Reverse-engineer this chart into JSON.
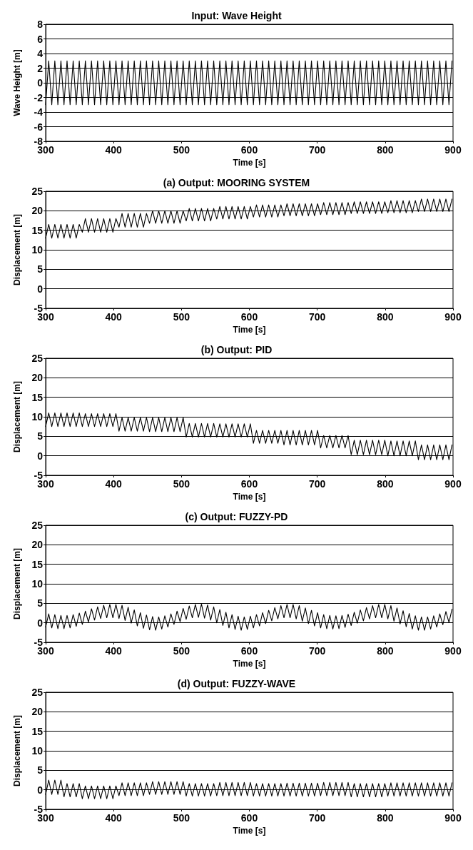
{
  "chart_data": [
    {
      "type": "line",
      "title": "Input: Wave Height",
      "xlabel": "Time [s]",
      "ylabel": "Wave Height [m]",
      "xlim": [
        300,
        900
      ],
      "xticks": [
        300,
        400,
        500,
        600,
        700,
        800,
        900
      ],
      "ylim": [
        -8,
        8
      ],
      "yticks": [
        -8,
        -6,
        -4,
        -2,
        0,
        2,
        4,
        6,
        8
      ],
      "grid": "y",
      "marker": "none",
      "line_style": "solid",
      "x": [
        300,
        304.5,
        309,
        313.5,
        318,
        322.5,
        327,
        331.5,
        336,
        340.5,
        345,
        349.5,
        354,
        358.5,
        363,
        367.5,
        372,
        376.5,
        381,
        385.5,
        390,
        394.5,
        399,
        403.5,
        408,
        412.5,
        417,
        421.5,
        426,
        430.5,
        435,
        439.5,
        444,
        448.5,
        453,
        457.5,
        462,
        466.5,
        471,
        475.5,
        480,
        484.5,
        489,
        493.5,
        498,
        502.5,
        507,
        511.5,
        516,
        520.5,
        525,
        529.5,
        534,
        538.5,
        543,
        547.5,
        552,
        556.5,
        561,
        565.5,
        570,
        574.5,
        579,
        583.5,
        588,
        592.5,
        597,
        601.5,
        606,
        610.5,
        615,
        619.5,
        624,
        628.5,
        633,
        637.5,
        642,
        646.5,
        651,
        655.5,
        660,
        664.5,
        669,
        673.5,
        678,
        682.5,
        687,
        691.5,
        696,
        700.5,
        705,
        709.5,
        714,
        718.5,
        723,
        727.5,
        732,
        736.5,
        741,
        745.5,
        750,
        754.5,
        759,
        763.5,
        768,
        772.5,
        777,
        781.5,
        786,
        790.5,
        795,
        799.5,
        804,
        808.5,
        813,
        817.5,
        822,
        826.5,
        831,
        835.5,
        840,
        844.5,
        849,
        853.5,
        858,
        862.5,
        867,
        871.5,
        876,
        880.5,
        885,
        889.5,
        894,
        898.5
      ],
      "series": [
        {
          "color": "#000000",
          "values": [
            -3,
            3,
            -3,
            3,
            -3,
            3,
            -3,
            3,
            -3,
            3,
            -3,
            3,
            -3,
            3,
            -3,
            3,
            -3,
            3,
            -3,
            3,
            -3,
            3,
            -3,
            3,
            -3,
            3,
            -3,
            3,
            -3,
            3,
            -3,
            3,
            -3,
            3,
            -3,
            3,
            -3,
            3,
            -3,
            3,
            -3,
            3,
            -3,
            3,
            -3,
            3,
            -3,
            3,
            -3,
            3,
            -3,
            3,
            -3,
            3,
            -3,
            3,
            -3,
            3,
            -3,
            3,
            -3,
            3,
            -3,
            3,
            -3,
            3,
            -3,
            3,
            -3,
            3,
            -3,
            3,
            -3,
            3,
            -3,
            3,
            -3,
            3,
            -3,
            3,
            -3,
            3,
            -3,
            3,
            -3,
            3,
            -3,
            3,
            -3,
            3,
            -3,
            3,
            -3,
            3,
            -3,
            3,
            -3,
            3,
            -3,
            3,
            -3,
            3,
            -3,
            3,
            -3,
            3,
            -3,
            3,
            -3,
            3,
            -3,
            3,
            -3,
            3,
            -3,
            3,
            -3,
            3,
            -3,
            3,
            -3,
            3,
            -3,
            3,
            -3,
            3,
            -3,
            3,
            -3,
            3,
            -3,
            3,
            -3,
            3
          ]
        }
      ]
    },
    {
      "type": "line",
      "title": "(a) Output: MOORING SYSTEM",
      "xlabel": "Time [s]",
      "ylabel": "Displacement [m]",
      "xlim": [
        300,
        900
      ],
      "xticks": [
        300,
        400,
        500,
        600,
        700,
        800,
        900
      ],
      "ylim": [
        -5,
        25
      ],
      "yticks": [
        -5,
        0,
        5,
        10,
        15,
        20,
        25
      ],
      "grid": "y",
      "marker": "none",
      "line_style": "solid",
      "x": [
        300,
        304.5,
        309,
        313.5,
        318,
        322.5,
        327,
        331.5,
        336,
        340.5,
        345,
        349.5,
        354,
        358.5,
        363,
        367.5,
        372,
        376.5,
        381,
        385.5,
        390,
        394.5,
        399,
        403.5,
        408,
        412.5,
        417,
        421.5,
        426,
        430.5,
        435,
        439.5,
        444,
        448.5,
        453,
        457.5,
        462,
        466.5,
        471,
        475.5,
        480,
        484.5,
        489,
        493.5,
        498,
        502.5,
        507,
        511.5,
        516,
        520.5,
        525,
        529.5,
        534,
        538.5,
        543,
        547.5,
        552,
        556.5,
        561,
        565.5,
        570,
        574.5,
        579,
        583.5,
        588,
        592.5,
        597,
        601.5,
        606,
        610.5,
        615,
        619.5,
        624,
        628.5,
        633,
        637.5,
        642,
        646.5,
        651,
        655.5,
        660,
        664.5,
        669,
        673.5,
        678,
        682.5,
        687,
        691.5,
        696,
        700.5,
        705,
        709.5,
        714,
        718.5,
        723,
        727.5,
        732,
        736.5,
        741,
        745.5,
        750,
        754.5,
        759,
        763.5,
        768,
        772.5,
        777,
        781.5,
        786,
        790.5,
        795,
        799.5,
        804,
        808.5,
        813,
        817.5,
        822,
        826.5,
        831,
        835.5,
        840,
        844.5,
        849,
        853.5,
        858,
        862.5,
        867,
        871.5,
        876,
        880.5,
        885,
        889.5,
        894,
        898.5
      ],
      "series": [
        {
          "color": "#000000",
          "values": [
            13,
            16.5,
            13,
            16.5,
            13,
            16.5,
            13,
            16.5,
            13,
            16.5,
            13,
            16.5,
            14.5,
            18,
            14.5,
            18,
            14.5,
            18,
            14.5,
            18,
            14.5,
            18,
            14.5,
            18,
            15.8,
            19.3,
            15.8,
            19.3,
            15.8,
            19.3,
            15.8,
            19.3,
            15.8,
            19.3,
            16.8,
            20,
            16.8,
            20,
            16.8,
            20,
            16.8,
            20,
            16.8,
            20,
            16.8,
            20,
            17.4,
            20.6,
            17.4,
            20.6,
            17.4,
            20.6,
            17.4,
            20.6,
            17.4,
            20.6,
            17.9,
            21.1,
            17.9,
            21.1,
            17.9,
            21.1,
            17.9,
            21.1,
            17.9,
            21.1,
            17.9,
            21.1,
            18.4,
            21.5,
            18.4,
            21.5,
            18.4,
            21.5,
            18.4,
            21.5,
            18.4,
            21.5,
            18.7,
            21.8,
            18.7,
            21.8,
            18.7,
            21.8,
            18.7,
            21.8,
            18.7,
            21.8,
            18.7,
            21.8,
            19,
            22.1,
            19,
            22.1,
            19,
            22.1,
            19,
            22.1,
            19,
            22.1,
            19.3,
            22.3,
            19.3,
            22.3,
            19.3,
            22.3,
            19.3,
            22.3,
            19.3,
            22.3,
            19.3,
            22.3,
            19.5,
            22.6,
            19.5,
            22.6,
            19.5,
            22.6,
            19.5,
            22.6,
            19.5,
            22.6,
            19.8,
            23,
            19.8,
            23,
            19.8,
            23,
            19.8,
            23,
            19.8,
            23,
            19.8,
            23
          ]
        }
      ]
    },
    {
      "type": "line",
      "title": "(b) Output: PID",
      "xlabel": "Time [s]",
      "ylabel": "Displacement [m]",
      "xlim": [
        300,
        900
      ],
      "xticks": [
        300,
        400,
        500,
        600,
        700,
        800,
        900
      ],
      "ylim": [
        -5,
        25
      ],
      "yticks": [
        -5,
        0,
        5,
        10,
        15,
        20,
        25
      ],
      "grid": "y",
      "marker": "none",
      "line_style": "solid",
      "x": [
        300,
        304.5,
        309,
        313.5,
        318,
        322.5,
        327,
        331.5,
        336,
        340.5,
        345,
        349.5,
        354,
        358.5,
        363,
        367.5,
        372,
        376.5,
        381,
        385.5,
        390,
        394.5,
        399,
        403.5,
        408,
        412.5,
        417,
        421.5,
        426,
        430.5,
        435,
        439.5,
        444,
        448.5,
        453,
        457.5,
        462,
        466.5,
        471,
        475.5,
        480,
        484.5,
        489,
        493.5,
        498,
        502.5,
        507,
        511.5,
        516,
        520.5,
        525,
        529.5,
        534,
        538.5,
        543,
        547.5,
        552,
        556.5,
        561,
        565.5,
        570,
        574.5,
        579,
        583.5,
        588,
        592.5,
        597,
        601.5,
        606,
        610.5,
        615,
        619.5,
        624,
        628.5,
        633,
        637.5,
        642,
        646.5,
        651,
        655.5,
        660,
        664.5,
        669,
        673.5,
        678,
        682.5,
        687,
        691.5,
        696,
        700.5,
        705,
        709.5,
        714,
        718.5,
        723,
        727.5,
        732,
        736.5,
        741,
        745.5,
        750,
        754.5,
        759,
        763.5,
        768,
        772.5,
        777,
        781.5,
        786,
        790.5,
        795,
        799.5,
        804,
        808.5,
        813,
        817.5,
        822,
        826.5,
        831,
        835.5,
        840,
        844.5,
        849,
        853.5,
        858,
        862.5,
        867,
        871.5,
        876,
        880.5,
        885,
        889.5,
        894,
        898.5
      ],
      "series": [
        {
          "color": "#000000",
          "values": [
            7.5,
            11,
            7.5,
            11,
            7.5,
            11,
            7.5,
            11,
            7.5,
            11,
            7.5,
            11,
            7.5,
            10.8,
            7.5,
            10.8,
            7.5,
            10.8,
            7.5,
            10.8,
            7.5,
            10.8,
            7.5,
            10.8,
            6.3,
            9.8,
            6.3,
            9.8,
            6.3,
            9.8,
            6.3,
            9.8,
            6.3,
            9.8,
            6.2,
            9.8,
            6.2,
            9.8,
            6.2,
            9.8,
            6.2,
            9.8,
            6.2,
            9.8,
            6.2,
            9.8,
            4.8,
            8.3,
            4.8,
            8.3,
            4.8,
            8.3,
            4.8,
            8.3,
            4.8,
            8.3,
            4.8,
            8.2,
            4.8,
            8.2,
            4.8,
            8.2,
            4.8,
            8.2,
            4.8,
            8.2,
            4.8,
            8.2,
            3.2,
            6.5,
            3.2,
            6.5,
            3.2,
            6.5,
            3.2,
            6.5,
            3.2,
            6.5,
            2.8,
            6.5,
            2.8,
            6.5,
            2.8,
            6.5,
            2.8,
            6.5,
            2.8,
            6.5,
            2.8,
            6.5,
            2,
            5.2,
            2,
            5.2,
            2,
            5.2,
            2,
            5.2,
            2,
            5.2,
            0.3,
            4,
            0.3,
            4,
            0.3,
            4,
            0.3,
            4,
            0.3,
            4,
            0.3,
            4,
            0,
            3.8,
            0,
            3.8,
            0,
            3.8,
            0,
            3.8,
            0,
            3.8,
            -1,
            2.8,
            -1,
            2.8,
            -1,
            2.8,
            -1,
            2.8,
            -1,
            2.8,
            -1,
            2.8
          ]
        }
      ]
    },
    {
      "type": "line",
      "title": "(c) Output: FUZZY-PD",
      "xlabel": "Time [s]",
      "ylabel": "Displacement [m]",
      "xlim": [
        300,
        900
      ],
      "xticks": [
        300,
        400,
        500,
        600,
        700,
        800,
        900
      ],
      "ylim": [
        -5,
        25
      ],
      "yticks": [
        -5,
        0,
        5,
        10,
        15,
        20,
        25
      ],
      "grid": "y",
      "marker": "none",
      "line_style": "solid",
      "x": [
        300,
        304.5,
        309,
        313.5,
        318,
        322.5,
        327,
        331.5,
        336,
        340.5,
        345,
        349.5,
        354,
        358.5,
        363,
        367.5,
        372,
        376.5,
        381,
        385.5,
        390,
        394.5,
        399,
        403.5,
        408,
        412.5,
        417,
        421.5,
        426,
        430.5,
        435,
        439.5,
        444,
        448.5,
        453,
        457.5,
        462,
        466.5,
        471,
        475.5,
        480,
        484.5,
        489,
        493.5,
        498,
        502.5,
        507,
        511.5,
        516,
        520.5,
        525,
        529.5,
        534,
        538.5,
        543,
        547.5,
        552,
        556.5,
        561,
        565.5,
        570,
        574.5,
        579,
        583.5,
        588,
        592.5,
        597,
        601.5,
        606,
        610.5,
        615,
        619.5,
        624,
        628.5,
        633,
        637.5,
        642,
        646.5,
        651,
        655.5,
        660,
        664.5,
        669,
        673.5,
        678,
        682.5,
        687,
        691.5,
        696,
        700.5,
        705,
        709.5,
        714,
        718.5,
        723,
        727.5,
        732,
        736.5,
        741,
        745.5,
        750,
        754.5,
        759,
        763.5,
        768,
        772.5,
        777,
        781.5,
        786,
        790.5,
        795,
        799.5,
        804,
        808.5,
        813,
        817.5,
        822,
        826.5,
        831,
        835.5,
        840,
        844.5,
        849,
        853.5,
        858,
        862.5,
        867,
        871.5,
        876,
        880.5,
        885,
        889.5,
        894,
        898.5
      ],
      "series": [
        {
          "color": "#000000",
          "values": [
            -1.1,
            2.3,
            -1.3,
            2.1,
            -1.5,
            1.9,
            -1.5,
            1.9,
            -1.3,
            2.1,
            -0.9,
            2.5,
            -0.4,
            3,
            0.2,
            3.6,
            0.7,
            4.1,
            1.1,
            4.5,
            1.3,
            4.7,
            1.3,
            4.7,
            1.1,
            4.5,
            0.6,
            4,
            -0.1,
            3.3,
            -0.8,
            2.6,
            -1.4,
            2,
            -1.8,
            1.6,
            -1.9,
            1.5,
            -1.6,
            1.8,
            -1.1,
            2.3,
            -0.4,
            3,
            0.3,
            3.7,
            0.9,
            4.3,
            1.3,
            4.7,
            1.4,
            4.8,
            1.2,
            4.6,
            0.7,
            4.1,
            0,
            3.4,
            -0.7,
            2.7,
            -1.3,
            2.1,
            -1.7,
            1.7,
            -1.9,
            1.5,
            -1.7,
            1.7,
            -1.3,
            2.1,
            -0.8,
            2.6,
            -0.2,
            3.2,
            0.5,
            3.9,
            1,
            4.4,
            1.3,
            4.7,
            1.3,
            4.7,
            1,
            4.4,
            0.4,
            3.8,
            -0.2,
            3.2,
            -0.8,
            2.6,
            -1.3,
            2.1,
            -1.5,
            1.9,
            -1.6,
            1.8,
            -1.5,
            1.9,
            -1.2,
            2.2,
            -0.7,
            2.7,
            -0.1,
            3.3,
            0.5,
            3.9,
            1,
            4.4,
            1.3,
            4.7,
            1.3,
            4.7,
            1,
            4.4,
            0.4,
            3.8,
            -0.3,
            3.1,
            -1,
            2.4,
            -1.6,
            1.8,
            -1.9,
            1.5,
            -1.9,
            1.5,
            -1.6,
            1.8,
            -1.1,
            2.3,
            -0.5,
            2.9,
            0.1,
            3.5
          ]
        }
      ]
    },
    {
      "type": "line",
      "title": "(d) Output: FUZZY-WAVE",
      "xlabel": "Time [s]",
      "ylabel": "Displacement [m]",
      "xlim": [
        300,
        900
      ],
      "xticks": [
        300,
        400,
        500,
        600,
        700,
        800,
        900
      ],
      "ylim": [
        -5,
        25
      ],
      "yticks": [
        -5,
        0,
        5,
        10,
        15,
        20,
        25
      ],
      "grid": "y",
      "marker": "none",
      "line_style": "solid",
      "x": [
        300,
        304.5,
        309,
        313.5,
        318,
        322.5,
        327,
        331.5,
        336,
        340.5,
        345,
        349.5,
        354,
        358.5,
        363,
        367.5,
        372,
        376.5,
        381,
        385.5,
        390,
        394.5,
        399,
        403.5,
        408,
        412.5,
        417,
        421.5,
        426,
        430.5,
        435,
        439.5,
        444,
        448.5,
        453,
        457.5,
        462,
        466.5,
        471,
        475.5,
        480,
        484.5,
        489,
        493.5,
        498,
        502.5,
        507,
        511.5,
        516,
        520.5,
        525,
        529.5,
        534,
        538.5,
        543,
        547.5,
        552,
        556.5,
        561,
        565.5,
        570,
        574.5,
        579,
        583.5,
        588,
        592.5,
        597,
        601.5,
        606,
        610.5,
        615,
        619.5,
        624,
        628.5,
        633,
        637.5,
        642,
        646.5,
        651,
        655.5,
        660,
        664.5,
        669,
        673.5,
        678,
        682.5,
        687,
        691.5,
        696,
        700.5,
        705,
        709.5,
        714,
        718.5,
        723,
        727.5,
        732,
        736.5,
        741,
        745.5,
        750,
        754.5,
        759,
        763.5,
        768,
        772.5,
        777,
        781.5,
        786,
        790.5,
        795,
        799.5,
        804,
        808.5,
        813,
        817.5,
        822,
        826.5,
        831,
        835.5,
        840,
        844.5,
        849,
        853.5,
        858,
        862.5,
        867,
        871.5,
        876,
        880.5,
        885,
        889.5,
        894,
        898.5
      ],
      "series": [
        {
          "color": "#000000",
          "values": [
            -1.2,
            2.5,
            -1.2,
            2.5,
            -1.2,
            2.5,
            -1.8,
            1.6,
            -1.8,
            1.6,
            -1.8,
            1.6,
            -2.3,
            1,
            -2.3,
            1,
            -2.3,
            1,
            -2.3,
            1,
            -2.3,
            1,
            -2.3,
            1,
            -1.5,
            1.8,
            -1.5,
            1.8,
            -1.5,
            1.8,
            -1.5,
            1.8,
            -1.5,
            1.8,
            -1.2,
            2.1,
            -1.2,
            2.1,
            -1.2,
            2.1,
            -1.2,
            2.1,
            -1.2,
            2.1,
            -1.2,
            2.1,
            -1.6,
            1.6,
            -1.6,
            1.6,
            -1.6,
            1.6,
            -1.6,
            1.6,
            -1.6,
            1.6,
            -1.5,
            1.9,
            -1.5,
            1.9,
            -1.5,
            1.9,
            -1.5,
            1.9,
            -1.5,
            1.9,
            -1.5,
            1.9,
            -1.6,
            1.6,
            -1.6,
            1.6,
            -1.6,
            1.6,
            -1.6,
            1.6,
            -1.6,
            1.6,
            -1.6,
            1.7,
            -1.6,
            1.7,
            -1.6,
            1.7,
            -1.6,
            1.7,
            -1.6,
            1.7,
            -1.6,
            1.7,
            -1.5,
            1.9,
            -1.5,
            1.9,
            -1.5,
            1.9,
            -1.5,
            1.9,
            -1.5,
            1.9,
            -1.8,
            1.6,
            -1.8,
            1.6,
            -1.8,
            1.6,
            -1.8,
            1.6,
            -1.8,
            1.6,
            -1.8,
            1.6,
            -1.6,
            1.8,
            -1.6,
            1.8,
            -1.6,
            1.8,
            -1.6,
            1.8,
            -1.6,
            1.8,
            -1.6,
            1.8,
            -1.6,
            1.8,
            -1.6,
            1.8,
            -1.6,
            1.8,
            -1.6,
            1.8,
            -1.6,
            1.8
          ]
        }
      ]
    }
  ]
}
